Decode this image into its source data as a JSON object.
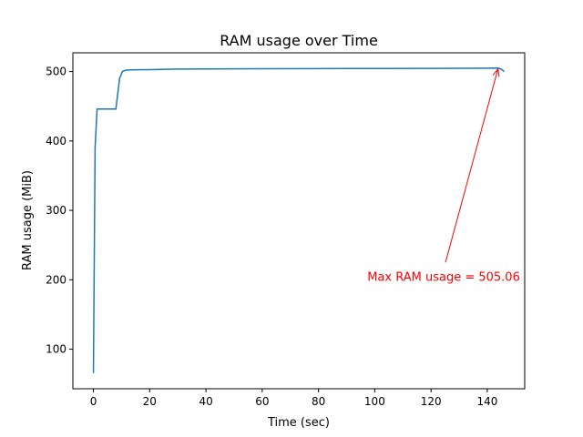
{
  "chart_data": {
    "type": "line",
    "title": "RAM usage over Time",
    "xlabel": "Time (sec)",
    "ylabel": "RAM usage (MiB)",
    "xlim": [
      -7.3,
      153.3
    ],
    "ylim": [
      43.0,
      527.0
    ],
    "xticks": [
      0,
      20,
      40,
      60,
      80,
      100,
      120,
      140
    ],
    "yticks": [
      100,
      200,
      300,
      400,
      500
    ],
    "grid": false,
    "series": [
      {
        "color": "#1f77b4",
        "x": [
          0,
          0.6,
          1.3,
          2.5,
          5,
          8,
          9.3,
          10.3,
          11.5,
          15,
          20,
          30,
          40,
          60,
          80,
          100,
          120,
          140,
          143.8,
          145,
          146
        ],
        "y": [
          65.5,
          390,
          446,
          446,
          446,
          446,
          490,
          500,
          502,
          502.5,
          502.8,
          503.5,
          503.8,
          504,
          504.2,
          504.4,
          504.6,
          504.9,
          505.06,
          503.5,
          500
        ]
      }
    ],
    "annotations": [
      {
        "text": "Max RAM usage = 505.06",
        "x": 143.8,
        "y": 505.06,
        "text_x": 124.5,
        "text_y": 204,
        "color": "#ff0000"
      }
    ]
  }
}
